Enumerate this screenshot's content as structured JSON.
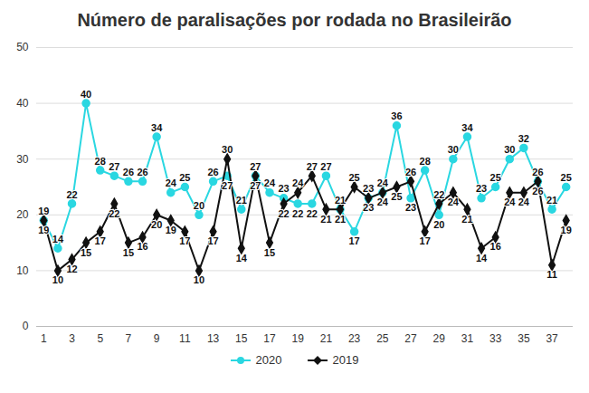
{
  "chart_data": {
    "type": "line",
    "title": "Número de paralisações por rodada no Brasileirão",
    "x": [
      1,
      2,
      3,
      4,
      5,
      6,
      7,
      8,
      9,
      10,
      11,
      12,
      13,
      14,
      15,
      16,
      17,
      18,
      19,
      20,
      21,
      22,
      23,
      24,
      25,
      26,
      27,
      28,
      29,
      30,
      31,
      32,
      33,
      34,
      35,
      36,
      37,
      38
    ],
    "series": [
      {
        "name": "2020",
        "color": "#2ad7e1",
        "marker": "circle",
        "values": [
          19,
          14,
          22,
          40,
          28,
          27,
          26,
          26,
          34,
          24,
          25,
          20,
          26,
          27,
          21,
          27,
          24,
          23,
          22,
          22,
          27,
          21,
          17,
          23,
          24,
          36,
          23,
          28,
          20,
          30,
          34,
          23,
          25,
          30,
          32,
          26,
          21,
          25
        ]
      },
      {
        "name": "2019",
        "color": "#111111",
        "marker": "diamond",
        "values": [
          19,
          10,
          12,
          15,
          17,
          22,
          15,
          16,
          20,
          19,
          17,
          10,
          17,
          30,
          14,
          27,
          15,
          22,
          24,
          27,
          21,
          21,
          25,
          23,
          24,
          25,
          26,
          17,
          22,
          24,
          21,
          14,
          16,
          24,
          24,
          26,
          11,
          19
        ]
      }
    ],
    "xlim": [
      0.5,
      38.5
    ],
    "xticks": [
      1,
      3,
      5,
      7,
      9,
      11,
      13,
      15,
      17,
      19,
      21,
      23,
      25,
      27,
      29,
      31,
      33,
      35,
      37
    ],
    "ylim": [
      0,
      50
    ],
    "yticks": [
      0,
      10,
      20,
      30,
      40,
      50
    ],
    "grid": true,
    "data_labels": true,
    "legend": "bottom"
  }
}
